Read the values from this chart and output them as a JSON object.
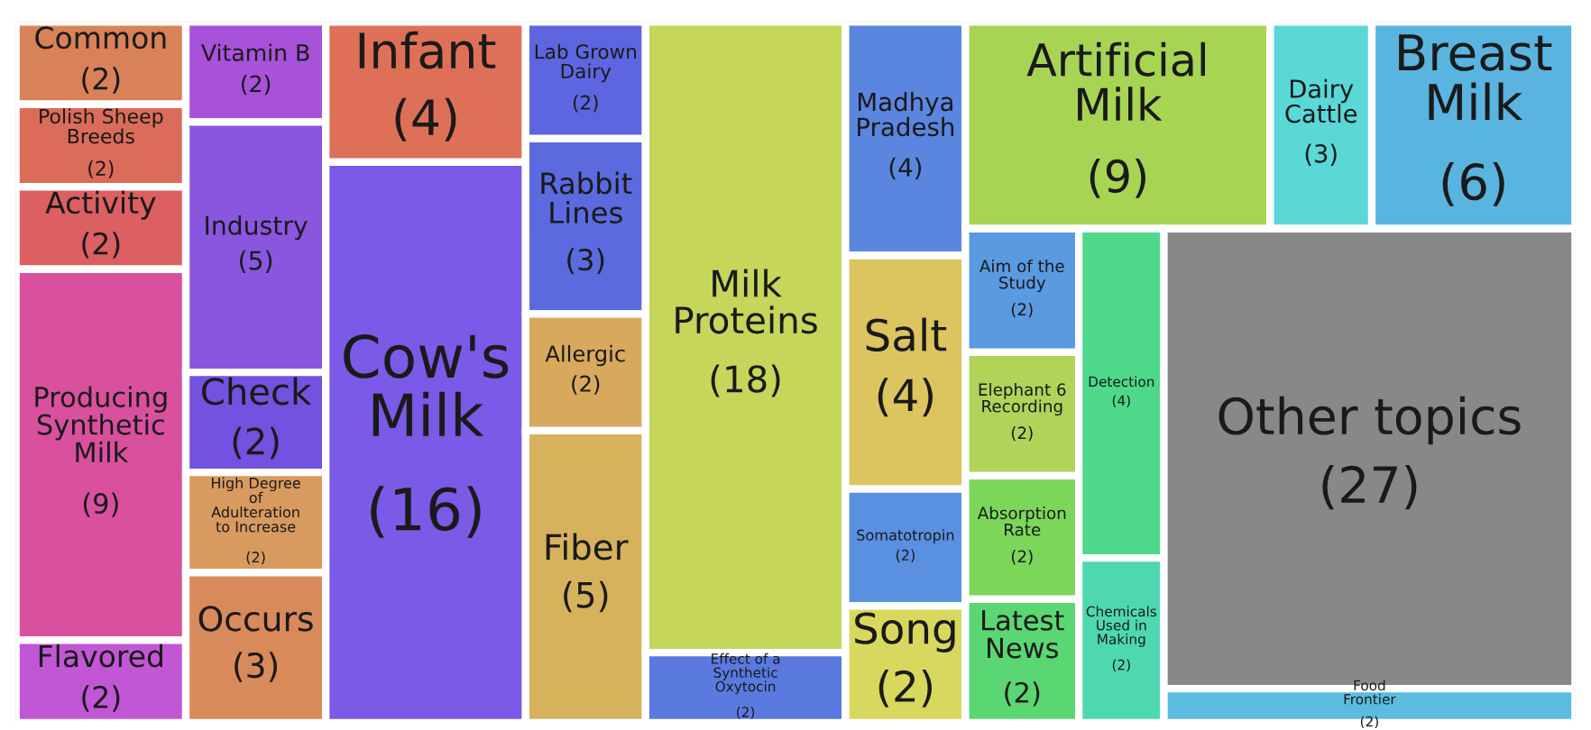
{
  "chart_data": {
    "type": "other",
    "categories": [
      "Common",
      "Polish Sheep\nBreeds",
      "Activity",
      "Producing\nSynthetic\nMilk",
      "Flavored",
      "Vitamin B",
      "Industry",
      "Check",
      "High Degree\nof\nAdulteration\nto Increase",
      "Occurs",
      "Infant",
      "Cow's\nMilk",
      "Lab Grown\nDairy",
      "Rabbit\nLines",
      "Allergic",
      "Fiber",
      "Milk\nProteins",
      "Effect of a\nSynthetic\nOxytocin",
      "Madhya\nPradesh",
      "Salt",
      "Somatotropin",
      "Song",
      "Artificial\nMilk",
      "Dairy\nCattle",
      "Breast\nMilk",
      "Aim of the\nStudy",
      "Elephant 6\nRecording",
      "Absorption\nRate",
      "Latest\nNews",
      "Detection",
      "Chemicals\nUsed in\nMaking",
      "Other topics",
      "Food\nFrontier"
    ],
    "values": [
      2,
      2,
      2,
      9,
      2,
      2,
      5,
      2,
      2,
      3,
      4,
      16,
      2,
      3,
      2,
      5,
      18,
      2,
      4,
      4,
      2,
      2,
      9,
      3,
      6,
      2,
      2,
      2,
      2,
      4,
      2,
      27,
      2
    ],
    "value_labels": [
      "(2)",
      "(2)",
      "(2)",
      "(9)",
      "(2)",
      "(2)",
      "(5)",
      "(2)",
      "(2)",
      "(3)",
      "(4)",
      "(16)",
      "(2)",
      "(3)",
      "(2)",
      "(5)",
      "(18)",
      "(2)",
      "(4)",
      "(4)",
      "(2)",
      "(2)",
      "(9)",
      "(3)",
      "(6)",
      "(2)",
      "(2)",
      "(2)",
      "(2)",
      "(4)",
      "(2)",
      "(27)",
      "(2)"
    ],
    "colors": [
      "#d9825a",
      "#dc6c5a",
      "#dc5f62",
      "#d9509f",
      "#c257d6",
      "#a752d9",
      "#8a56e0",
      "#7352e0",
      "#d99a60",
      "#d98a5a",
      "#df7058",
      "#7a5ae6",
      "#5d66e0",
      "#5c6adf",
      "#d8a85c",
      "#d6b25c",
      "#c5d65a",
      "#5a7ae0",
      "#5a86e0",
      "#dcc45e",
      "#5a90e0",
      "#d8d85e",
      "#a8d454",
      "#5ad8d8",
      "#5ab4e0",
      "#5a9ae0",
      "#b0d45a",
      "#7cd65a",
      "#5ad672",
      "#4ed88a",
      "#4ed8b0",
      "#888888",
      "#5abde0"
    ]
  }
}
